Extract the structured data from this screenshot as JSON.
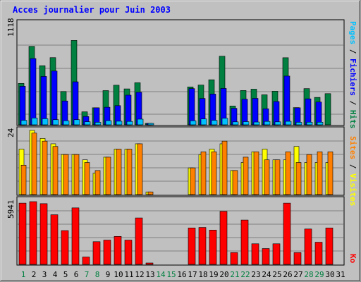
{
  "chart_data": {
    "type": "bar",
    "title": "Acces journalier pour Juin 2003",
    "days": [
      "1",
      "2",
      "3",
      "4",
      "5",
      "6",
      "7",
      "8",
      "9",
      "10",
      "11",
      "12",
      "13",
      "14",
      "15",
      "16",
      "17",
      "18",
      "19",
      "20",
      "21",
      "22",
      "23",
      "24",
      "25",
      "26",
      "27",
      "28",
      "29",
      "30",
      "31"
    ],
    "weekend_days": [
      "1",
      "7",
      "8",
      "14",
      "15",
      "21",
      "22",
      "28",
      "29"
    ],
    "panels": [
      {
        "id": "hits_files_pages",
        "ymax_label": "1118",
        "ymax": 1118,
        "series": [
          {
            "name": "Hits",
            "color": "#008040",
            "values": [
              462,
              876,
              660,
              750,
              372,
              942,
              145,
              190,
              382,
              442,
              401,
              470,
              10,
              0,
              0,
              0,
              423,
              444,
              503,
              766,
              210,
              383,
              398,
              335,
              375,
              749,
              192,
              404,
              306,
              348,
              0
            ]
          },
          {
            "name": "Fichiers",
            "color": "#0000ff",
            "values": [
              430,
              740,
              540,
              600,
              266,
              480,
              93,
              190,
              196,
              214,
              331,
              363,
              9,
              0,
              0,
              0,
              404,
              294,
              343,
              406,
              184,
              286,
              295,
              179,
              260,
              544,
              190,
              290,
              254,
              0,
              0
            ]
          },
          {
            "name": "Pages",
            "color": "#00c0ff",
            "values": [
              50,
              76,
              68,
              57,
              45,
              57,
              34,
              28,
              46,
              40,
              38,
              63,
              3,
              0,
              0,
              0,
              45,
              65,
              50,
              73,
              33,
              35,
              31,
              38,
              33,
              39,
              28,
              29,
              29,
              0,
              0
            ]
          }
        ]
      },
      {
        "id": "visits_sites",
        "ymax_label": "24",
        "ymax": 24,
        "series": [
          {
            "name": "Visites",
            "color": "#ffff00",
            "values": [
              17,
              24,
              21,
              19,
              15,
              15,
              13,
              8,
              14,
              17,
              17,
              19,
              1,
              0,
              0,
              0,
              10,
              15,
              17,
              19,
              9,
              12,
              16,
              17,
              13,
              13,
              18,
              12,
              12,
              12,
              0
            ]
          },
          {
            "name": "Sites",
            "color": "#ff8000",
            "values": [
              11,
              23,
              20,
              18,
              15,
              15,
              12,
              9,
              14,
              17,
              17,
              19,
              1,
              0,
              0,
              0,
              10,
              16,
              16,
              20,
              9,
              14,
              16,
              13,
              13,
              16,
              12,
              15,
              16,
              16,
              0
            ]
          }
        ]
      },
      {
        "id": "ko",
        "ymax_label": "5941",
        "ymax": 5941,
        "series": [
          {
            "name": "Ko",
            "color": "#ff0000",
            "values": [
              5800,
              5941,
              5750,
              4700,
              3200,
              5350,
              700,
              2150,
              2300,
              2650,
              2300,
              4400,
              80,
              0,
              0,
              0,
              3450,
              3500,
              3250,
              5020,
              1120,
              4200,
              1950,
              1500,
              1950,
              5800,
              1120,
              3350,
              2100,
              3450,
              0
            ]
          }
        ]
      }
    ]
  },
  "colors": {
    "frame_background": "#c0c0c0",
    "plot_background": "#c0c0c0",
    "title_color": "#0000ff",
    "weekend_label_color": "#008040",
    "weekday_label_color": "#000000",
    "grid_color": "#7f7f7f"
  }
}
